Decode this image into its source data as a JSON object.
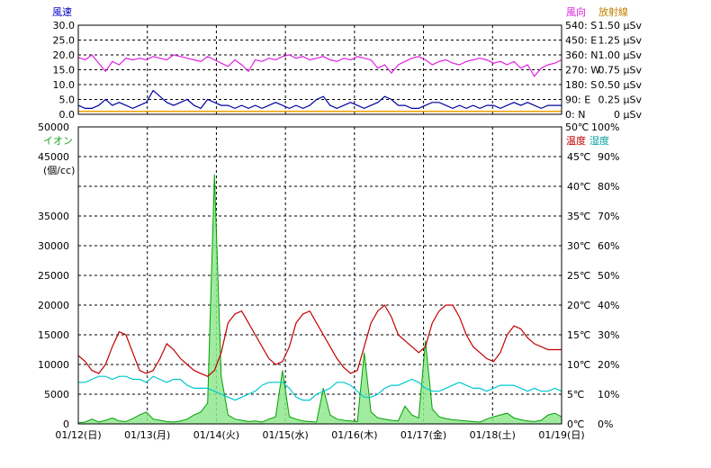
{
  "chart_data": [
    {
      "type": "line",
      "left_axis_label": "風速",
      "right_axis_labels": [
        "風向",
        "放射線"
      ],
      "left_ticks": [
        "30.0",
        "25.0",
        "20.0",
        "15.0",
        "10.0",
        "5.0",
        "0.0"
      ],
      "right_ticks_direction": [
        "540: S",
        "450: E",
        "360: N",
        "270: W",
        "180: S",
        "90: E",
        "0: N"
      ],
      "right_ticks_radiation": [
        "1.50 μSv",
        "1.25 μSv",
        "1.00 μSv",
        "0.75 μSv",
        "0.50 μSv",
        "0.25 μSv",
        "0 μSv"
      ],
      "ylim_speed": [
        0,
        30
      ],
      "ylim_direction": [
        0,
        540
      ],
      "series": [
        {
          "name": "風速",
          "color": "#0000a0",
          "values": [
            3,
            2,
            2,
            3,
            5,
            3,
            4,
            3,
            2,
            3,
            4,
            8,
            6,
            4,
            3,
            4,
            5,
            3,
            2,
            5,
            4,
            3,
            3,
            2,
            3,
            2,
            3,
            2,
            3,
            4,
            3,
            2,
            3,
            2,
            3,
            5,
            6,
            3,
            2,
            3,
            4,
            3,
            2,
            3,
            4,
            6,
            5,
            3,
            3,
            2,
            2,
            3,
            4,
            4,
            3,
            2,
            3,
            2,
            3,
            2,
            3,
            3,
            2,
            3,
            4,
            3,
            4,
            3,
            2,
            3,
            3,
            3
          ]
        },
        {
          "name": "風向",
          "color": "#e020e0",
          "values": [
            345,
            330,
            360,
            310,
            260,
            320,
            300,
            340,
            330,
            340,
            330,
            350,
            340,
            330,
            360,
            350,
            340,
            330,
            320,
            350,
            330,
            310,
            290,
            330,
            300,
            260,
            330,
            320,
            340,
            330,
            350,
            360,
            340,
            350,
            330,
            340,
            350,
            330,
            320,
            340,
            330,
            350,
            340,
            330,
            280,
            300,
            250,
            300,
            320,
            340,
            350,
            330,
            300,
            320,
            330,
            310,
            300,
            320,
            330,
            340,
            330,
            310,
            320,
            300,
            320,
            280,
            300,
            230,
            280,
            300,
            310,
            330
          ]
        },
        {
          "name": "放射線",
          "color": "#f0a000",
          "values": [
            0.05,
            0.05,
            0.05,
            0.05,
            0.05,
            0.05,
            0.05,
            0.05,
            0.05,
            0.05,
            0.05,
            0.05,
            0.05,
            0.05,
            0.05,
            0.05,
            0.05,
            0.05,
            0.05,
            0.05,
            0.05,
            0.05,
            0.05,
            0.05,
            0.05,
            0.05,
            0.05,
            0.05,
            0.05,
            0.05,
            0.05,
            0.05,
            0.05,
            0.05,
            0.05,
            0.05,
            0.05,
            0.05,
            0.05,
            0.05,
            0.05,
            0.05,
            0.05,
            0.05,
            0.05,
            0.05,
            0.05,
            0.05,
            0.05,
            0.05,
            0.05,
            0.05,
            0.05,
            0.05,
            0.05,
            0.05,
            0.05,
            0.05,
            0.05,
            0.05,
            0.05,
            0.05,
            0.05,
            0.05,
            0.05,
            0.05,
            0.05,
            0.05,
            0.05,
            0.05,
            0.05,
            0.05
          ]
        }
      ]
    },
    {
      "type": "line",
      "left_axis_label": "イオン",
      "left_unit": "(個/cc)",
      "right_axis_labels": [
        "温度",
        "湿度"
      ],
      "left_ticks": [
        "50000",
        "45000",
        "40000",
        "35000",
        "30000",
        "25000",
        "20000",
        "15000",
        "10000",
        "5000",
        "0"
      ],
      "right_ticks_temp": [
        "50℃",
        "45℃",
        "40℃",
        "35℃",
        "30℃",
        "25℃",
        "20℃",
        "15℃",
        "10℃",
        "5℃",
        "0℃"
      ],
      "right_ticks_humidity": [
        "100%",
        "90%",
        "80%",
        "70%",
        "60%",
        "50%",
        "40%",
        "30%",
        "20%",
        "10%",
        "0%"
      ],
      "x_tick_labels": [
        "01/12(日)",
        "01/13(月)",
        "01/14(火)",
        "01/15(水)",
        "01/16(木)",
        "01/17(金)",
        "01/18(土)",
        "01/19(日)"
      ],
      "ylim_ion": [
        0,
        50000
      ],
      "series": [
        {
          "name": "温度",
          "color": "#c00000",
          "unit": "℃",
          "values": [
            11.5,
            10.5,
            9,
            8.5,
            10,
            13,
            15.5,
            15,
            12,
            9,
            8.5,
            9,
            11,
            13.5,
            12.5,
            11,
            10,
            9,
            8.5,
            8,
            9,
            12,
            17,
            18.5,
            19,
            17,
            15,
            13,
            11,
            10,
            10.5,
            13,
            17,
            18.5,
            19,
            17,
            15,
            13,
            11,
            9.5,
            8.5,
            9,
            13,
            17,
            19,
            20,
            18,
            15,
            14,
            13,
            12,
            13,
            17,
            19,
            20,
            20,
            18,
            15,
            13,
            12,
            11,
            10.5,
            12,
            15,
            16.5,
            16,
            14.5,
            13.5,
            13,
            12.5,
            12.5,
            12.5
          ]
        },
        {
          "name": "湿度",
          "color": "#00c8c8",
          "unit": "%",
          "values": [
            14,
            14,
            15,
            16,
            16,
            15,
            16,
            16,
            15,
            15,
            14,
            16,
            15,
            14,
            15,
            15,
            13,
            12,
            12,
            12,
            11,
            10,
            9,
            8,
            9,
            10,
            11,
            13,
            14,
            14,
            14,
            12,
            9,
            8,
            8,
            10,
            11,
            12,
            14,
            14,
            13,
            11,
            9,
            9,
            10,
            12,
            13,
            13,
            14,
            15,
            14,
            12,
            11,
            11,
            12,
            13,
            14,
            13,
            12,
            12,
            11,
            12,
            13,
            13,
            13,
            12,
            11,
            12,
            11,
            11,
            12,
            11
          ]
        },
        {
          "name": "イオン",
          "color": "#1a9f1a",
          "unit": "個/cc",
          "values": [
            200,
            300,
            800,
            300,
            600,
            1000,
            500,
            400,
            900,
            1500,
            2000,
            800,
            600,
            400,
            300,
            500,
            800,
            1500,
            2000,
            3500,
            42000,
            8000,
            1500,
            800,
            600,
            400,
            500,
            300,
            800,
            1200,
            9000,
            1200,
            800,
            500,
            400,
            300,
            6000,
            1500,
            800,
            600,
            500,
            400,
            12000,
            2000,
            1000,
            800,
            600,
            500,
            3000,
            1500,
            1000,
            14000,
            2500,
            1200,
            900,
            700,
            600,
            500,
            400,
            300,
            800,
            1200,
            1500,
            1800,
            1000,
            700,
            500,
            400,
            600,
            1500,
            1800,
            1200
          ]
        }
      ]
    }
  ]
}
